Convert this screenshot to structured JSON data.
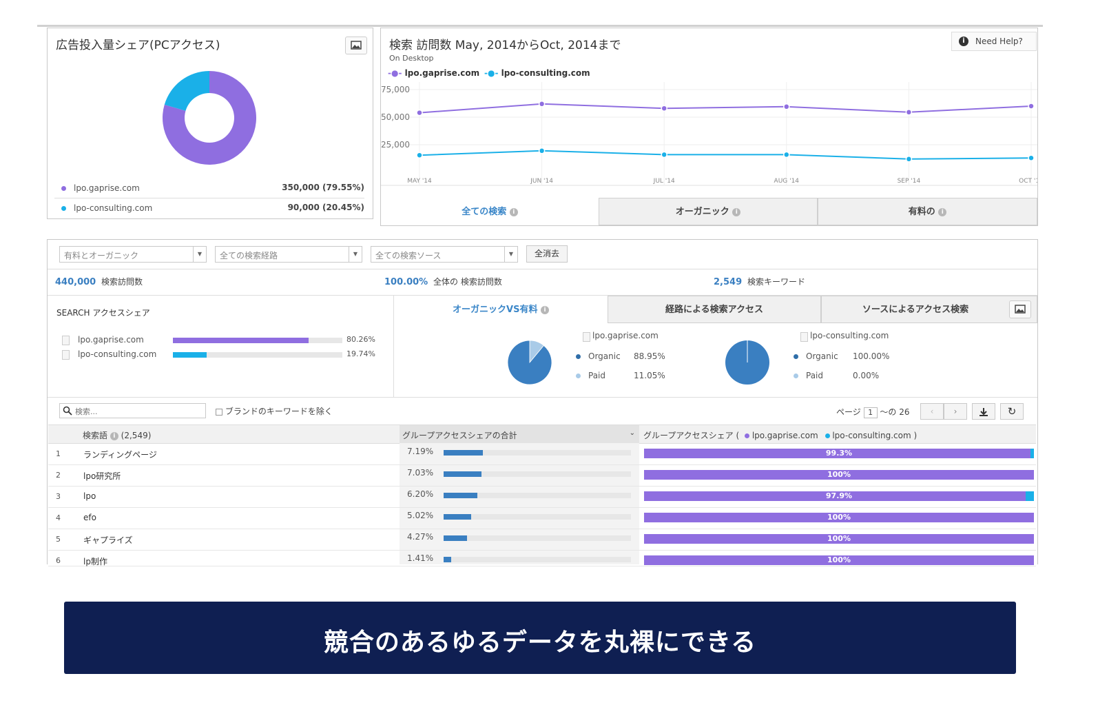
{
  "colors": {
    "purple": "#8f6ee0",
    "cyan": "#1ab0e8",
    "blue": "#3a7fc1",
    "light_blue": "#a9cbe8",
    "banner_bg": "#0f1f52"
  },
  "ad_share": {
    "title": "広告投入量シェア(PCアクセス)",
    "icon": "image-icon",
    "legend": [
      {
        "name": "lpo.gaprise.com",
        "value": "350,000 (79.55%)",
        "share": 79.55
      },
      {
        "name": "lpo-consulting.com",
        "value": "90,000 (20.45%)",
        "share": 20.45
      }
    ]
  },
  "visits": {
    "title": "検索 訪問数 May, 2014からOct, 2014まで",
    "subtitle": "On Desktop",
    "help": "Need Help?",
    "legend": [
      "lpo.gaprise.com",
      "lpo-consulting.com"
    ],
    "tabs": [
      {
        "label": "全ての検索",
        "active": true
      },
      {
        "label": "オーガニック",
        "active": false
      },
      {
        "label": "有料の",
        "active": false
      }
    ]
  },
  "chart_data": {
    "type": "line",
    "title": "検索 訪問数 May, 2014からOct, 2014まで",
    "x": [
      "MAY '14",
      "JUN '14",
      "JUL '14",
      "AUG '14",
      "SEP '14",
      "OCT '14"
    ],
    "yticks": [
      "75,000",
      "50,000",
      "25,000"
    ],
    "ylim": [
      0,
      75000
    ],
    "grid": true,
    "legend_position": "top-left",
    "series": [
      {
        "name": "lpo.gaprise.com",
        "color": "#8f6ee0",
        "values": [
          54000,
          62000,
          58000,
          59500,
          54500,
          60000
        ]
      },
      {
        "name": "lpo-consulting.com",
        "color": "#1ab0e8",
        "values": [
          15500,
          19500,
          16000,
          16000,
          12000,
          13000
        ]
      }
    ]
  },
  "filters": {
    "dropdowns": [
      "有料とオーガニック",
      "全ての検索経路",
      "全ての検索ソース"
    ],
    "clear": "全消去"
  },
  "summary": [
    {
      "value": "440,000",
      "label": "検索訪問数"
    },
    {
      "value": "100.00%",
      "label": "全体の 検索訪問数"
    },
    {
      "value": "2,549",
      "label": "検索キーワード"
    }
  ],
  "access_share": {
    "title": "SEARCH アクセスシェア",
    "items": [
      {
        "name": "lpo.gaprise.com",
        "pct": "80.26%",
        "value": 80.26,
        "color": "#8f6ee0"
      },
      {
        "name": "lpo-consulting.com",
        "pct": "19.74%",
        "value": 19.74,
        "color": "#1ab0e8"
      }
    ]
  },
  "mid_tabs": [
    {
      "label": "オーガニックVS有料",
      "active": true
    },
    {
      "label": "経路による検索アクセス",
      "active": false
    },
    {
      "label": "ソースによるアクセス検索",
      "active": false
    }
  ],
  "pies": [
    {
      "site": "lpo.gaprise.com",
      "organic_label": "Organic",
      "organic": "88.95%",
      "organic_value": 88.95,
      "paid_label": "Paid",
      "paid": "11.05%",
      "paid_value": 11.05
    },
    {
      "site": "lpo-consulting.com",
      "organic_label": "Organic",
      "organic": "100.00%",
      "organic_value": 100.0,
      "paid_label": "Paid",
      "paid": "0.00%",
      "paid_value": 0.0
    }
  ],
  "table_controls": {
    "search_placeholder": "検索...",
    "exclude_brand": "ブランドのキーワードを除く",
    "page_label": "ページ",
    "page_value": "1",
    "page_total": "〜の 26"
  },
  "table": {
    "headers": {
      "keyword": "検索語",
      "count": "(2,549)",
      "total": "グループアクセスシェアの合計",
      "share": "グループアクセスシェア (",
      "site1": "lpo.gaprise.com",
      "site2": "lpo-consulting.com )"
    },
    "rows": [
      {
        "n": "1",
        "kw": "ランディングページ",
        "pct": "7.19%",
        "pv": 7.19,
        "share": "99.3%",
        "sv": 99.3
      },
      {
        "n": "2",
        "kw": "lpo研究所",
        "pct": "7.03%",
        "pv": 7.03,
        "share": "100%",
        "sv": 100
      },
      {
        "n": "3",
        "kw": "lpo",
        "pct": "6.20%",
        "pv": 6.2,
        "share": "97.9%",
        "sv": 97.9
      },
      {
        "n": "4",
        "kw": "efo",
        "pct": "5.02%",
        "pv": 5.02,
        "share": "100%",
        "sv": 100
      },
      {
        "n": "5",
        "kw": "ギャプライズ",
        "pct": "4.27%",
        "pv": 4.27,
        "share": "100%",
        "sv": 100
      },
      {
        "n": "6",
        "kw": "lp制作",
        "pct": "1.41%",
        "pv": 1.41,
        "share": "100%",
        "sv": 100
      }
    ]
  },
  "banner": {
    "text": "競合のあるゆるデータを丸裸にできる"
  }
}
